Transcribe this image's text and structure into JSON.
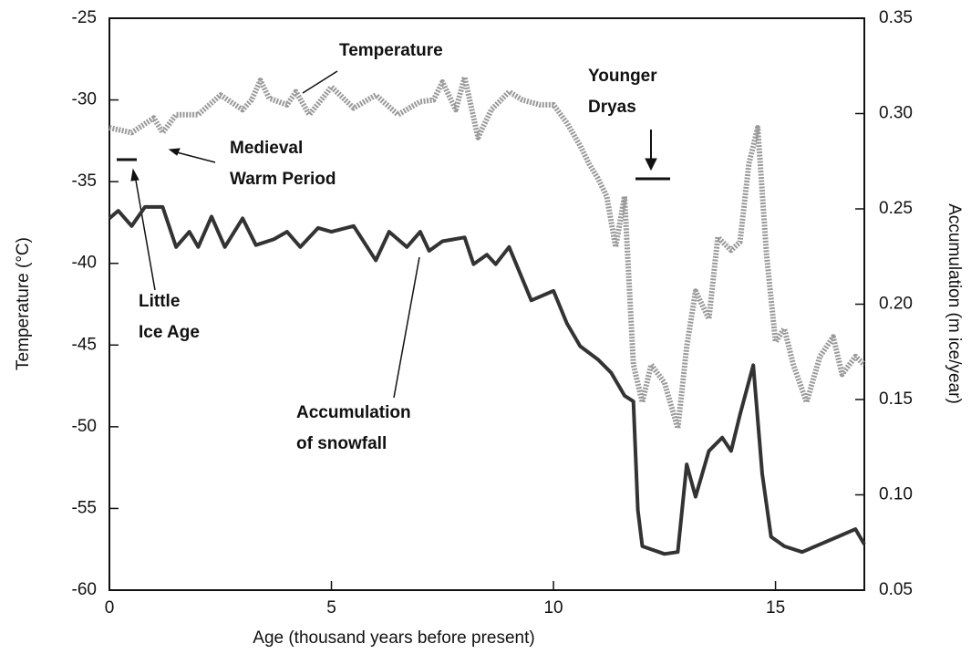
{
  "chart_data": {
    "type": "line",
    "xlabel": "Age (thousand years before present)",
    "ylabel": "Temperature (°C)",
    "y2label": "Accumulation (m ice/year)",
    "xlim": [
      0,
      17
    ],
    "xticks": [
      0,
      5,
      10,
      15
    ],
    "ylim": [
      -60,
      -25
    ],
    "yticks": [
      -60,
      -55,
      -50,
      -45,
      -40,
      -35,
      -30,
      -25
    ],
    "y2lim": [
      0.05,
      0.35
    ],
    "y2ticks": [
      0.05,
      {
        "value": 0.1,
        "label": "0.10"
      },
      0.15,
      {
        "value": 0.2,
        "label": "0.20"
      },
      0.25,
      {
        "value": 0.3,
        "label": "0.30"
      },
      0.35
    ],
    "series": [
      {
        "name": "Temperature",
        "color": "#9a9a9a",
        "x": [
          0,
          0.5,
          1,
          1.2,
          1.5,
          2,
          2.5,
          3,
          3.2,
          3.4,
          3.6,
          4,
          4.2,
          4.5,
          4.8,
          5,
          5.5,
          6,
          6.5,
          7,
          7.3,
          7.5,
          7.8,
          8,
          8.3,
          8.6,
          9,
          9.3,
          9.7,
          10,
          10.3,
          10.6,
          10.8,
          11,
          11.2,
          11.4,
          11.6,
          11.8,
          12,
          12.2,
          12.5,
          12.8,
          13,
          13.2,
          13.5,
          13.7,
          14,
          14.2,
          14.4,
          14.6,
          14.8,
          15,
          15.2,
          15.4,
          15.7,
          16,
          16.3,
          16.5,
          16.8,
          17
        ],
        "values": [
          -31.7,
          -32.0,
          -31.1,
          -32.0,
          -30.9,
          -30.9,
          -29.7,
          -30.6,
          -30.0,
          -28.8,
          -29.9,
          -30.3,
          -29.5,
          -30.9,
          -29.9,
          -29.2,
          -30.5,
          -29.7,
          -30.9,
          -30.1,
          -30.0,
          -28.9,
          -30.6,
          -28.6,
          -32.3,
          -30.6,
          -29.5,
          -30.0,
          -30.3,
          -30.3,
          -31.4,
          -32.8,
          -33.9,
          -34.8,
          -35.9,
          -39.0,
          -35.9,
          -46.2,
          -48.5,
          -46.2,
          -47.3,
          -50.1,
          -45.1,
          -41.7,
          -43.4,
          -38.4,
          -39.2,
          -38.7,
          -33.9,
          -31.7,
          -39.5,
          -44.8,
          -44.0,
          -46.2,
          -48.5,
          -45.7,
          -44.5,
          -46.8,
          -45.7,
          -46.2
        ]
      },
      {
        "name": "Accumulation of snowfall",
        "color": "#333333",
        "axis": "y2",
        "x": [
          0,
          0.2,
          0.5,
          0.8,
          1.2,
          1.5,
          1.8,
          2,
          2.3,
          2.6,
          3,
          3.3,
          3.7,
          4,
          4.3,
          4.7,
          5,
          5.5,
          6,
          6.3,
          6.7,
          7,
          7.2,
          7.5,
          8,
          8.2,
          8.5,
          8.7,
          9,
          9.5,
          10,
          10.3,
          10.6,
          11,
          11.3,
          11.6,
          11.8,
          11.9,
          12,
          12.5,
          12.8,
          13,
          13.2,
          13.5,
          13.8,
          14,
          14.2,
          14.5,
          14.7,
          14.9,
          15.2,
          15.6,
          16,
          16.4,
          16.8,
          17
        ],
        "values": [
          0.245,
          0.249,
          0.241,
          0.251,
          0.251,
          0.23,
          0.238,
          0.23,
          0.246,
          0.23,
          0.245,
          0.231,
          0.234,
          0.238,
          0.23,
          0.24,
          0.238,
          0.241,
          0.223,
          0.238,
          0.23,
          0.238,
          0.228,
          0.233,
          0.235,
          0.221,
          0.226,
          0.221,
          0.23,
          0.202,
          0.207,
          0.19,
          0.178,
          0.171,
          0.164,
          0.152,
          0.149,
          0.092,
          0.073,
          0.069,
          0.07,
          0.116,
          0.099,
          0.123,
          0.13,
          0.123,
          0.142,
          0.168,
          0.111,
          0.078,
          0.073,
          0.07,
          0.074,
          0.078,
          0.082,
          0.074
        ]
      }
    ],
    "annotations": [
      {
        "lines": [
          "Temperature"
        ]
      },
      {
        "lines": [
          "Medieval",
          "Warm Period"
        ]
      },
      {
        "lines": [
          "Little",
          "Ice Age"
        ]
      },
      {
        "lines": [
          "Younger",
          "Dryas"
        ]
      },
      {
        "lines": [
          "Accumulation",
          "of snowfall"
        ]
      }
    ]
  }
}
